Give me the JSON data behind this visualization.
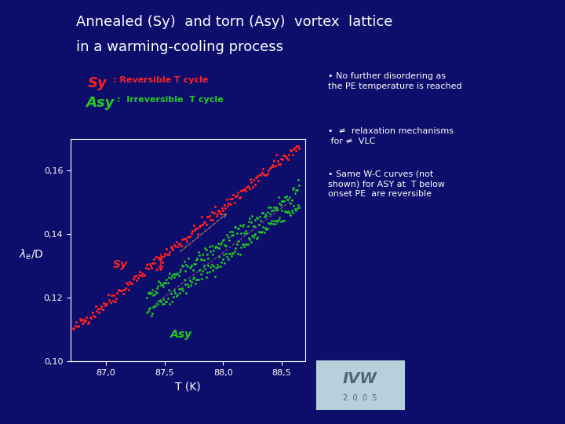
{
  "background_color": "#0d0d6b",
  "title_line1": "Annealed (Sy)  and torn (Asy)  vortex  lattice",
  "title_line2": "in a warming-cooling process",
  "title_color": "#ffffff",
  "title_fontsize": 13,
  "sy_label_color": "#ff2222",
  "asy_label_color": "#22cc22",
  "xlabel": "T (K)",
  "xlim": [
    86.7,
    88.7
  ],
  "ylim": [
    0.1,
    0.17
  ],
  "xticks": [
    87.0,
    87.5,
    88.0,
    88.5
  ],
  "xtick_labels": [
    "87,0",
    "87,5",
    "88,0",
    "88,5"
  ],
  "yticks": [
    0.1,
    0.12,
    0.14,
    0.16
  ],
  "ytick_labels": [
    "0,10",
    "0,12",
    "0,14",
    "0,16"
  ],
  "axes_color": "#ffffff",
  "tick_color": "#ffffff",
  "note1": "• No further disordering as\nthe PE temperature is reached",
  "note2": "•  ≠  relaxation mechanisms\n for ≠  VLC",
  "note3": "• Same W-C curves (not\nshown) for ASY at  T below\nonset PE  are reversible",
  "notes_color": "#ffffff",
  "notes_fontsize": 8,
  "sy_color": "#ff2020",
  "asy_color": "#22cc22",
  "dashed_color": "#aa7777"
}
